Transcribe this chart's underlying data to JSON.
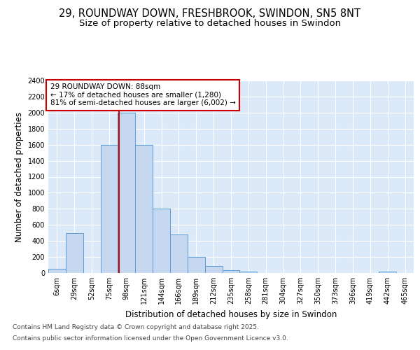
{
  "title_line1": "29, ROUNDWAY DOWN, FRESHBROOK, SWINDON, SN5 8NT",
  "title_line2": "Size of property relative to detached houses in Swindon",
  "xlabel": "Distribution of detached houses by size in Swindon",
  "ylabel": "Number of detached properties",
  "categories": [
    "6sqm",
    "29sqm",
    "52sqm",
    "75sqm",
    "98sqm",
    "121sqm",
    "144sqm",
    "166sqm",
    "189sqm",
    "212sqm",
    "235sqm",
    "258sqm",
    "281sqm",
    "304sqm",
    "327sqm",
    "350sqm",
    "373sqm",
    "396sqm",
    "419sqm",
    "442sqm",
    "465sqm"
  ],
  "values": [
    50,
    500,
    0,
    1600,
    2000,
    1600,
    800,
    480,
    200,
    90,
    35,
    20,
    0,
    0,
    0,
    0,
    0,
    0,
    0,
    20,
    0
  ],
  "bar_color": "#c5d8f0",
  "bar_edge_color": "#5b9bd5",
  "background_color": "#dce9f8",
  "fig_background": "#ffffff",
  "grid_color": "#ffffff",
  "vline_color": "#cc0000",
  "annotation_text": "29 ROUNDWAY DOWN: 88sqm\n← 17% of detached houses are smaller (1,280)\n81% of semi-detached houses are larger (6,002) →",
  "annotation_box_color": "#cc0000",
  "annotation_fill": "#ffffff",
  "ylim": [
    0,
    2400
  ],
  "yticks": [
    0,
    200,
    400,
    600,
    800,
    1000,
    1200,
    1400,
    1600,
    1800,
    2000,
    2200,
    2400
  ],
  "footer_line1": "Contains HM Land Registry data © Crown copyright and database right 2025.",
  "footer_line2": "Contains public sector information licensed under the Open Government Licence v3.0.",
  "title_fontsize": 10.5,
  "subtitle_fontsize": 9.5,
  "axis_label_fontsize": 8.5,
  "tick_fontsize": 7,
  "annotation_fontsize": 7.5,
  "footer_fontsize": 6.5
}
